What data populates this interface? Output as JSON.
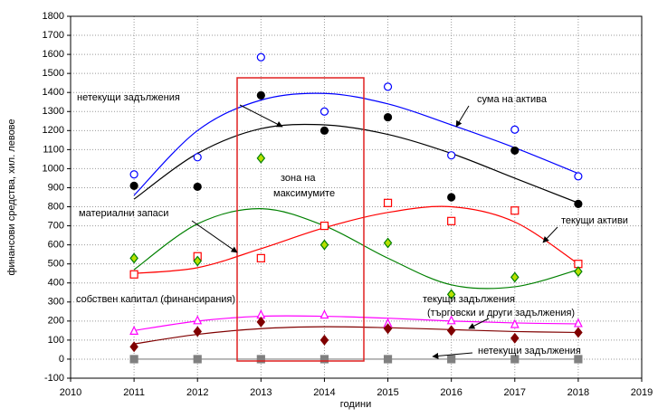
{
  "chart_data": {
    "type": "scatter",
    "xlabel": "години",
    "ylabel": "финансови средства, хил. левове",
    "x": [
      2011,
      2012,
      2013,
      2014,
      2015,
      2016,
      2017,
      2018
    ],
    "xlim": [
      2010,
      2019
    ],
    "xticks": [
      2010,
      2011,
      2012,
      2013,
      2014,
      2015,
      2016,
      2017,
      2018,
      2019
    ],
    "ylim": [
      -100,
      1800
    ],
    "yticks": [
      -100,
      0,
      100,
      200,
      300,
      400,
      500,
      600,
      700,
      800,
      900,
      1000,
      1100,
      1200,
      1300,
      1400,
      1500,
      1600,
      1700,
      1800
    ],
    "grid": true,
    "zone_label": [
      "зона на",
      "максимумите"
    ],
    "series": [
      {
        "name": "сума на актива",
        "color": "#0000ff",
        "marker": "circle-open",
        "values": [
          970,
          1060,
          1585,
          1300,
          1430,
          1070,
          1205,
          960
        ],
        "trend": [
          860,
          1200,
          1360,
          1395,
          1340,
          1230,
          1110,
          975
        ]
      },
      {
        "name": "нетекущи задължения",
        "color": "#000000",
        "marker": "circle",
        "values": [
          910,
          905,
          1385,
          1200,
          1270,
          850,
          1095,
          815
        ],
        "trend": [
          840,
          1080,
          1210,
          1230,
          1180,
          1080,
          950,
          820
        ]
      },
      {
        "name": "текущи активи",
        "color": "#ff0000",
        "marker": "square-open",
        "values": [
          445,
          540,
          530,
          700,
          820,
          725,
          780,
          500
        ],
        "trend": [
          450,
          480,
          580,
          690,
          770,
          800,
          720,
          500
        ]
      },
      {
        "name": "материални запаси",
        "color": "#008000",
        "marker": "diamond",
        "marker_fill": "#b8e000",
        "values": [
          530,
          515,
          1055,
          600,
          610,
          340,
          430,
          460
        ],
        "trend": [
          470,
          710,
          790,
          700,
          530,
          390,
          380,
          470
        ]
      },
      {
        "name": "собствен капитал (финансирания)",
        "color": "#ff00ff",
        "marker": "triangle-open",
        "values": [
          150,
          205,
          235,
          235,
          190,
          205,
          185,
          190
        ],
        "trend": [
          150,
          200,
          225,
          225,
          215,
          200,
          190,
          185
        ]
      },
      {
        "name": "текущи задължения",
        "note": "(търговски и други задължения)",
        "color": "#800000",
        "marker": "diamond",
        "values": [
          65,
          145,
          195,
          100,
          160,
          150,
          110,
          140
        ],
        "trend": [
          80,
          130,
          160,
          170,
          165,
          155,
          145,
          140
        ]
      },
      {
        "name": "нетекущи задължения",
        "color": "#808080",
        "marker": "square",
        "values": [
          0,
          0,
          0,
          0,
          0,
          0,
          0,
          0
        ],
        "trend": [
          0,
          0,
          0,
          0,
          0,
          0,
          0,
          0
        ]
      }
    ]
  }
}
